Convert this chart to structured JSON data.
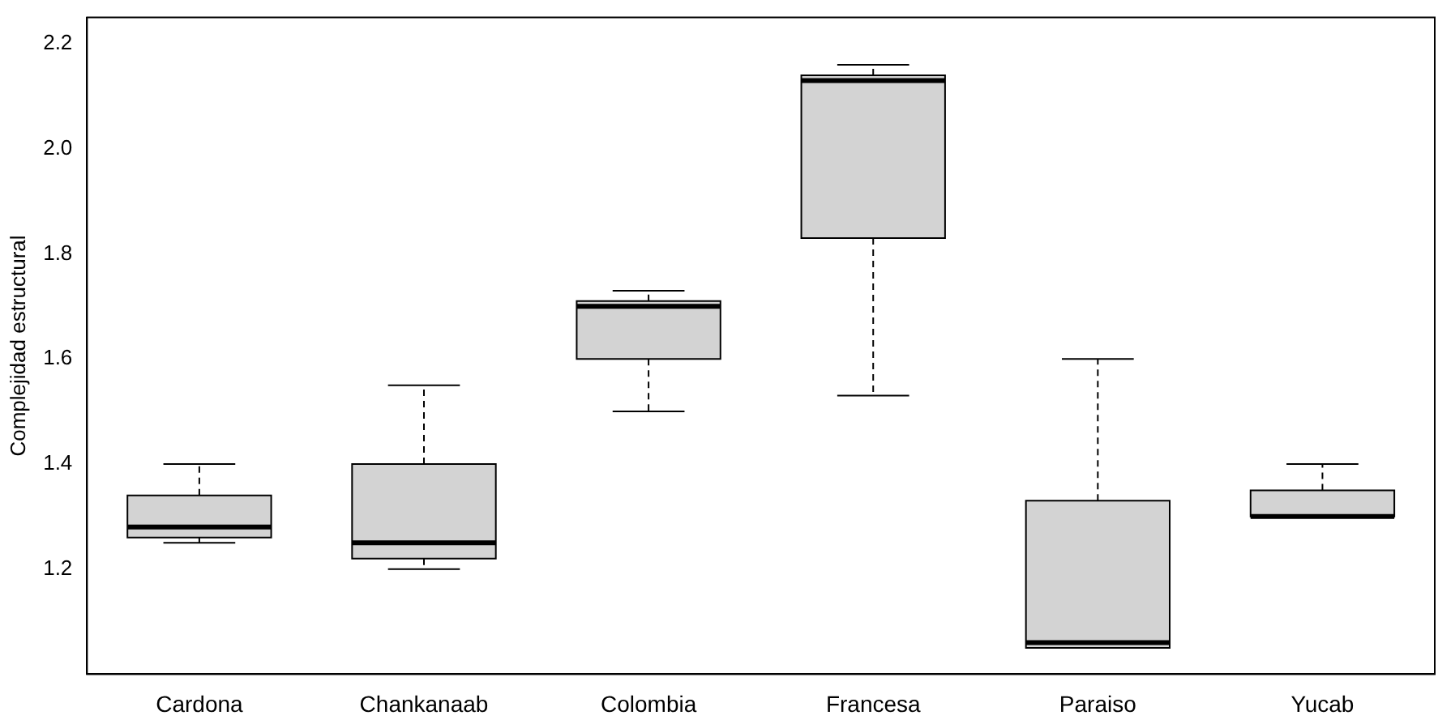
{
  "chart_data": {
    "type": "box",
    "ylabel": "Complejidad estructural",
    "categories": [
      "Cardona",
      "Chankanaab",
      "Colombia",
      "Francesa",
      "Paraiso",
      "Yucab"
    ],
    "boxes": [
      {
        "low": 1.25,
        "q1": 1.26,
        "median": 1.28,
        "q3": 1.34,
        "high": 1.4
      },
      {
        "low": 1.2,
        "q1": 1.22,
        "median": 1.25,
        "q3": 1.4,
        "high": 1.55
      },
      {
        "low": 1.5,
        "q1": 1.6,
        "median": 1.7,
        "q3": 1.71,
        "high": 1.73
      },
      {
        "low": 1.53,
        "q1": 1.83,
        "median": 2.13,
        "q3": 2.14,
        "high": 2.16
      },
      {
        "low": 1.05,
        "q1": 1.05,
        "median": 1.06,
        "q3": 1.33,
        "high": 1.6
      },
      {
        "low": 1.3,
        "q1": 1.3,
        "median": 1.3,
        "q3": 1.35,
        "high": 1.4
      }
    ],
    "color": "#d3d3d3",
    "ylim": [
      1.0,
      2.25
    ],
    "yticks": [
      {
        "value": 1.2,
        "label": "1.2"
      },
      {
        "value": 1.4,
        "label": "1.4"
      },
      {
        "value": 1.6,
        "label": "1.6"
      },
      {
        "value": 1.8,
        "label": "1.8"
      },
      {
        "value": 2,
        "label": "2.0"
      },
      {
        "value": 2.2,
        "label": "2.2"
      }
    ],
    "grid": false
  }
}
